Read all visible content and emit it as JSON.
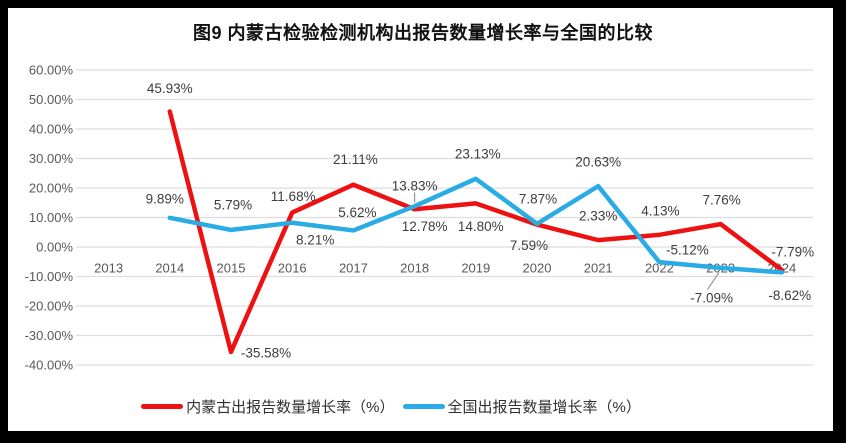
{
  "chart_data": {
    "type": "line",
    "title": "图9 内蒙古检验检测机构出报告数量增长率与全国的比较",
    "categories": [
      "2013",
      "2014",
      "2015",
      "2016",
      "2017",
      "2018",
      "2019",
      "2020",
      "2021",
      "2022",
      "2023",
      "2024"
    ],
    "series": [
      {
        "name": "内蒙古出报告数量增长率（%）",
        "color": "#ee1111",
        "values": [
          null,
          45.93,
          -35.58,
          11.68,
          21.11,
          12.78,
          14.8,
          7.59,
          2.33,
          4.13,
          7.76,
          -7.79
        ]
      },
      {
        "name": "全国出报告数量增长率（%）",
        "color": "#29ace3",
        "values": [
          null,
          9.89,
          5.79,
          8.21,
          5.62,
          13.83,
          23.13,
          7.87,
          20.63,
          -5.12,
          -7.09,
          -8.62
        ]
      }
    ],
    "ylim": [
      -40,
      60
    ],
    "ytick_step": 10,
    "ytick_labels": [
      "60.00%",
      "50.00%",
      "40.00%",
      "30.00%",
      "20.00%",
      "10.00%",
      "0.00%",
      "-10.00%",
      "-20.00%",
      "-30.00%",
      "-40.00%"
    ],
    "data_label_format": "0.00%",
    "grid": true,
    "legend_position": "bottom"
  },
  "colors": {
    "frame": "#000000",
    "background": "#ffffff",
    "gridline": "#dddddd",
    "tick_text": "#595959",
    "data_label_text": "#3d3d3d"
  }
}
